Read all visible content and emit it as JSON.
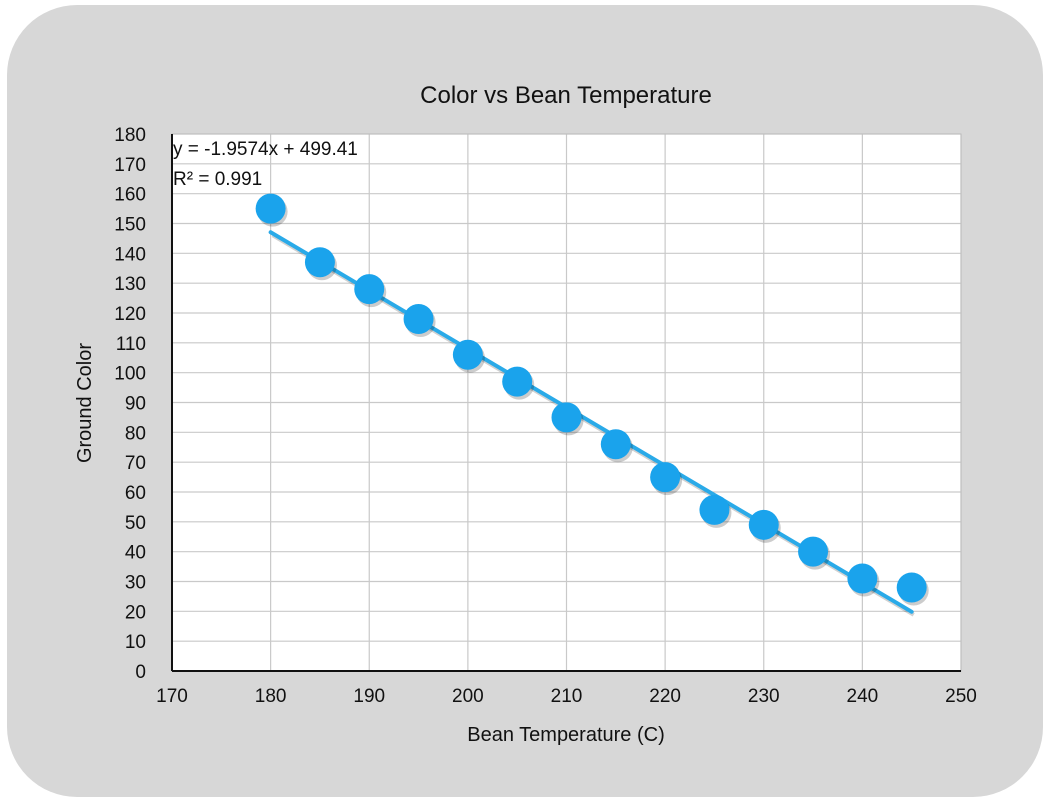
{
  "chart_data": {
    "type": "scatter",
    "title": "Color vs Bean Temperature",
    "xlabel": "Bean Temperature (C)",
    "ylabel": "Ground Color",
    "xlim": [
      170,
      250
    ],
    "ylim": [
      0,
      180
    ],
    "x_ticks": [
      170,
      180,
      190,
      200,
      210,
      220,
      230,
      240,
      250
    ],
    "y_ticks": [
      0,
      10,
      20,
      30,
      40,
      50,
      60,
      70,
      80,
      90,
      100,
      110,
      120,
      130,
      140,
      150,
      160,
      170,
      180
    ],
    "grid": true,
    "series": [
      {
        "color": "#1aa3ec",
        "points": [
          {
            "x": 180,
            "y": 155
          },
          {
            "x": 185,
            "y": 137
          },
          {
            "x": 190,
            "y": 128
          },
          {
            "x": 195,
            "y": 118
          },
          {
            "x": 200,
            "y": 106
          },
          {
            "x": 205,
            "y": 97
          },
          {
            "x": 210,
            "y": 85
          },
          {
            "x": 215,
            "y": 76
          },
          {
            "x": 220,
            "y": 65
          },
          {
            "x": 225,
            "y": 54
          },
          {
            "x": 230,
            "y": 49
          },
          {
            "x": 235,
            "y": 40
          },
          {
            "x": 240,
            "y": 31
          },
          {
            "x": 245,
            "y": 28
          }
        ]
      }
    ],
    "trendline": {
      "type": "linear",
      "slope": -1.9574,
      "intercept": 499.41,
      "x_range": [
        180,
        245
      ],
      "color": "#2aaae8",
      "equation_label": "y = -1.9574x + 499.41",
      "r2_label": "R² = 0.991"
    }
  }
}
